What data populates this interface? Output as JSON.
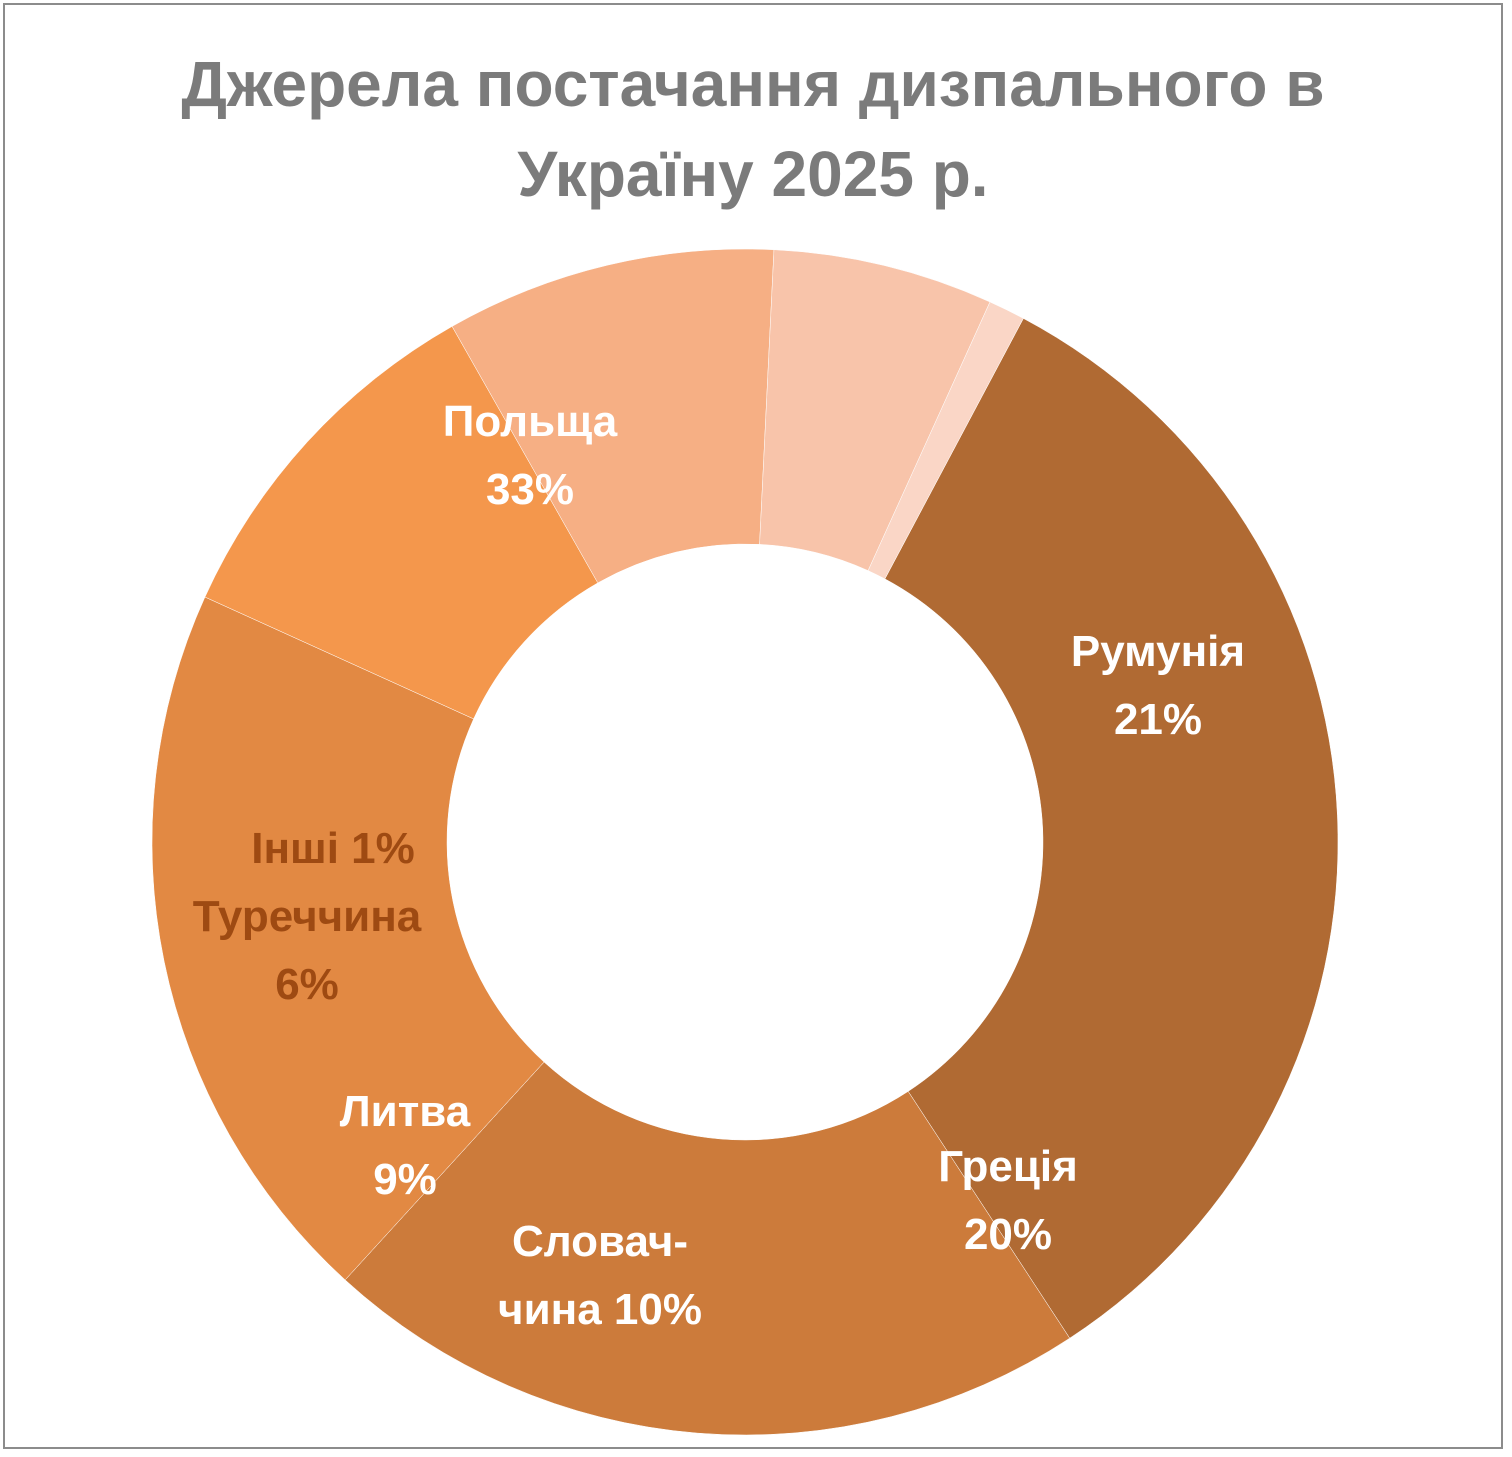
{
  "chart_data": {
    "type": "pie",
    "variant": "donut",
    "title_lines": [
      "Джерела постачання дизпального в",
      "Україну 2025 р."
    ],
    "slices": [
      {
        "name": "Польща",
        "value": 33,
        "label_lines": [
          "Польща",
          "33%"
        ],
        "color": "#B06A33",
        "text_color": "#ffffff"
      },
      {
        "name": "Румунія",
        "value": 21,
        "label_lines": [
          "Румунія",
          "21%"
        ],
        "color": "#CC7B3B",
        "text_color": "#ffffff"
      },
      {
        "name": "Греція",
        "value": 20,
        "label_lines": [
          "Греція",
          "20%"
        ],
        "color": "#E28943",
        "text_color": "#ffffff"
      },
      {
        "name": "Словаччина",
        "value": 10,
        "label_lines": [
          "Словач-",
          "чина 10%"
        ],
        "color": "#F4974C",
        "text_color": "#ffffff"
      },
      {
        "name": "Литва",
        "value": 9,
        "label_lines": [
          "Литва",
          "9%"
        ],
        "color": "#F6AF84",
        "text_color": "#ffffff"
      },
      {
        "name": "Туреччина",
        "value": 6,
        "label_lines": [
          "Туреччина",
          "6%"
        ],
        "color": "#F8C4AA",
        "text_color": "#9E4A12"
      },
      {
        "name": "Інші",
        "value": 1,
        "label_lines": [
          "Інші 1%"
        ],
        "color": "#FAD6C6",
        "text_color": "#9E4A12"
      }
    ],
    "legend": "none"
  }
}
